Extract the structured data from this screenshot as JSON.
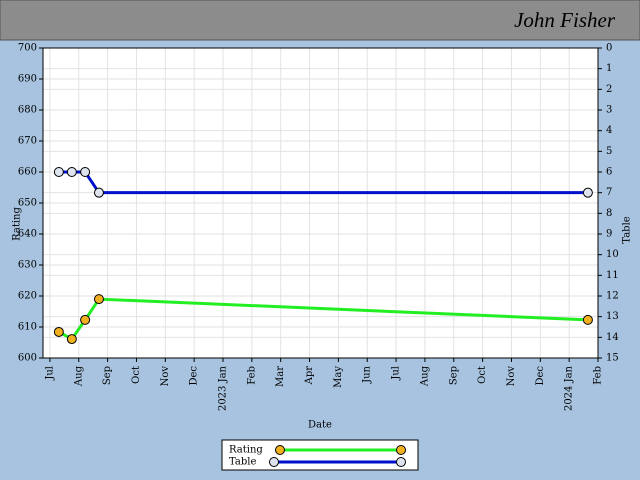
{
  "chart_data": {
    "type": "line",
    "title": "John Fisher",
    "xlabel": "Date",
    "ylabel": "Rating",
    "y2label": "Table",
    "x": [
      0.31,
      0.76,
      1.22,
      1.7,
      18.65
    ],
    "xlim": [
      -0.24,
      19
    ],
    "xticks": [
      {
        "value": 0,
        "label": "Jul"
      },
      {
        "value": 1,
        "label": "Aug"
      },
      {
        "value": 2,
        "label": "Sep"
      },
      {
        "value": 3,
        "label": "Oct"
      },
      {
        "value": 4,
        "label": "Nov"
      },
      {
        "value": 5,
        "label": "Dec"
      },
      {
        "value": 6,
        "label": "2023 Jan"
      },
      {
        "value": 7,
        "label": "Feb"
      },
      {
        "value": 8,
        "label": "Mar"
      },
      {
        "value": 9,
        "label": "Apr"
      },
      {
        "value": 10,
        "label": "May"
      },
      {
        "value": 11,
        "label": "Jun"
      },
      {
        "value": 12,
        "label": "Jul"
      },
      {
        "value": 13,
        "label": "Aug"
      },
      {
        "value": 14,
        "label": "Sep"
      },
      {
        "value": 15,
        "label": "Oct"
      },
      {
        "value": 16,
        "label": "Nov"
      },
      {
        "value": 17,
        "label": "Dec"
      },
      {
        "value": 18,
        "label": "2024 Jan"
      },
      {
        "value": 19,
        "label": "Feb"
      }
    ],
    "ylim": [
      600,
      700
    ],
    "yticks": [
      600,
      610,
      620,
      630,
      640,
      650,
      660,
      670,
      680,
      690,
      700
    ],
    "y2lim": [
      15,
      0
    ],
    "y2ticks": [
      0,
      1,
      2,
      3,
      4,
      5,
      6,
      7,
      8,
      9,
      10,
      11,
      12,
      13,
      14,
      15
    ],
    "grid": true,
    "legend": "bottom",
    "series": [
      {
        "name": "Rating",
        "color": "#22ee22",
        "marker_color": "#f0b020",
        "values": [
          608.4,
          606.1,
          612.3,
          619,
          612.3
        ]
      },
      {
        "name": "Table",
        "color": "#0011cc",
        "marker_color": "#dde4ee",
        "axis": "y2",
        "values": [
          6,
          6,
          6,
          7,
          7
        ]
      }
    ]
  }
}
